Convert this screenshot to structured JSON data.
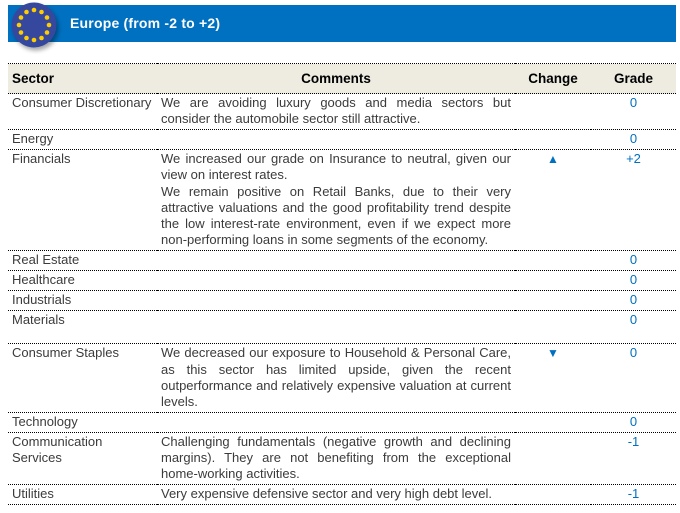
{
  "title_bar": {
    "title": "Europe (from -2 to +2)"
  },
  "table": {
    "columns": [
      "Sector",
      "Comments",
      "Change",
      "Grade"
    ],
    "rows": [
      {
        "sector": "Consumer Discretionary",
        "comments": [
          "We are avoiding luxury goods and media sectors but consider the automobile sector still attractive."
        ],
        "change_icon": "",
        "grade": "0"
      },
      {
        "sector": "Energy",
        "comments": [],
        "change_icon": "",
        "grade": "0"
      },
      {
        "sector": "Financials",
        "comments": [
          "We increased our grade on Insurance to neutral, given our view on interest rates.",
          "We remain positive on Retail Banks, due to their very attractive valuations and the good profitability trend despite the low interest-rate environment, even if we expect more non-performing loans in some segments of the economy."
        ],
        "change_icon": "up-triangle-icon",
        "grade": "+2"
      },
      {
        "sector": "Real Estate",
        "comments": [],
        "change_icon": "",
        "grade": "0"
      },
      {
        "sector": "Healthcare",
        "comments": [],
        "change_icon": "",
        "grade": "0"
      },
      {
        "sector": "Industrials",
        "comments": [],
        "change_icon": "",
        "grade": "0"
      },
      {
        "sector": "Materials",
        "comments": [],
        "change_icon": "",
        "grade": "0"
      },
      {
        "sector": "Consumer Staples",
        "comments": [
          "We decreased our exposure to Household & Personal Care, as this sector has limited upside, given the recent outperformance and relatively expensive valuation at current levels."
        ],
        "change_icon": "down-triangle-icon",
        "grade": "0"
      },
      {
        "sector": "Technology",
        "comments": [],
        "change_icon": "",
        "grade": "0"
      },
      {
        "sector": "Communication Services",
        "comments": [
          "Challenging fundamentals (negative growth and declining margins). They are not benefiting from the exceptional home-working activities."
        ],
        "change_icon": "",
        "grade": "-1"
      },
      {
        "sector": "Utilities",
        "comments": [
          "Very expensive defensive sector and very high debt level."
        ],
        "change_icon": "",
        "grade": "-1"
      }
    ]
  },
  "icons": {
    "eu-flag-icon": "circle-of-12-stars",
    "up-triangle-icon": "▲",
    "down-triangle-icon": "▼"
  },
  "colors": {
    "title_bar_bg": "#0070C0",
    "title_text": "#FFFFFF",
    "flag_circle": "#35489E",
    "flag_stars": "#FFCC00",
    "header_row_bg": "#EEECE1",
    "grade_text": "#0070C0",
    "change_marker": "#0070C0",
    "body_text": "#3B3B3B"
  }
}
